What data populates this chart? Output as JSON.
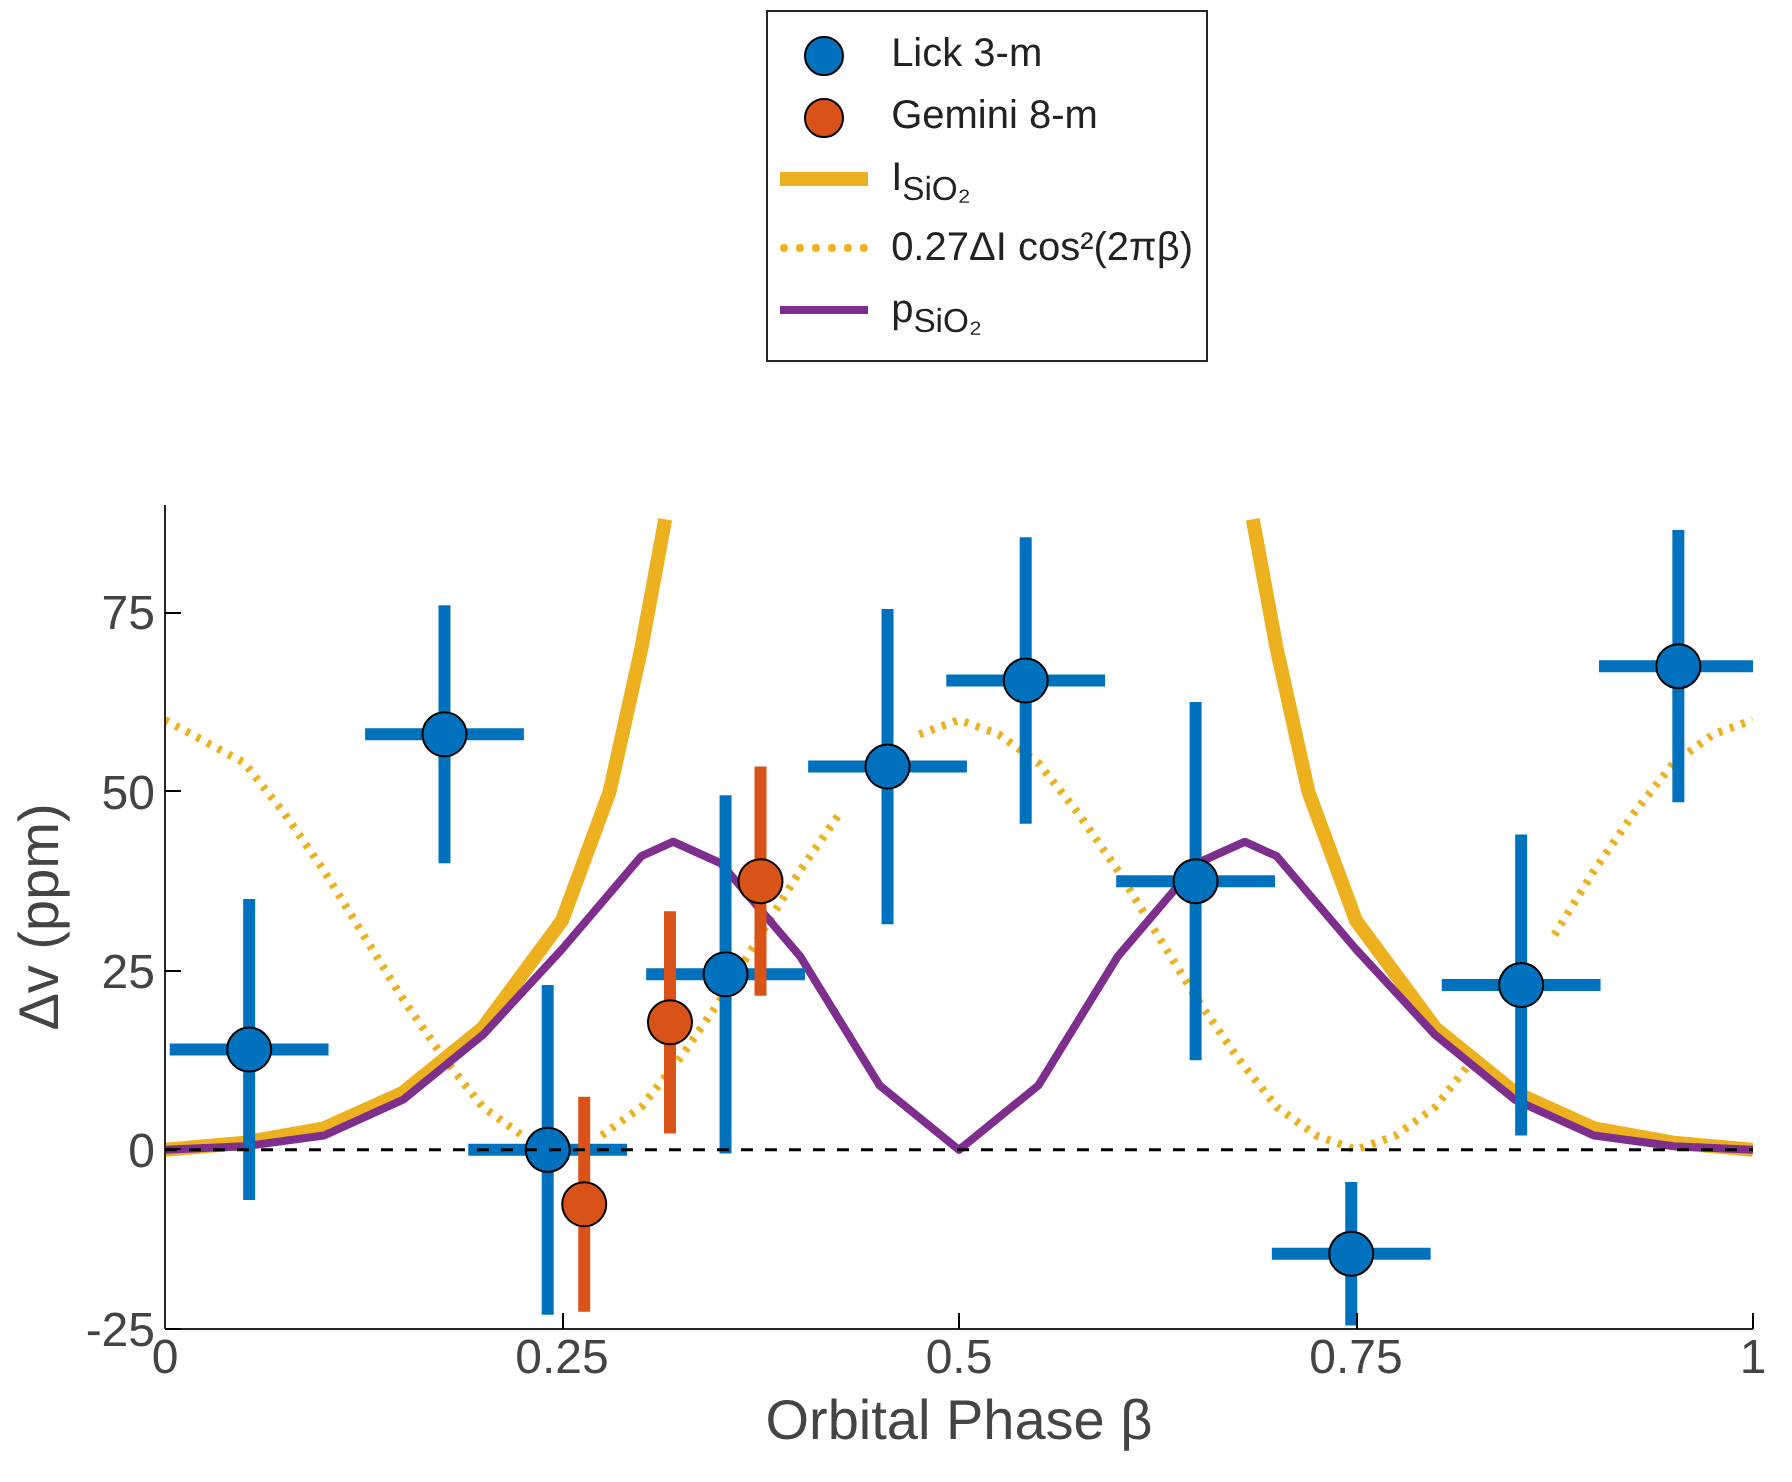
{
  "chart_data": {
    "type": "scatter",
    "xlabel": "Orbital Phase β",
    "ylabel": "Δv (ppm)",
    "xlim": [
      0,
      1
    ],
    "ylim": [
      -25,
      90
    ],
    "xticks": [
      0,
      0.25,
      0.5,
      0.75,
      1
    ],
    "yticks": [
      -25,
      0,
      25,
      50,
      75
    ],
    "grid": false,
    "legend": "top",
    "ref_lines": [
      {
        "axis": "y",
        "value": 0,
        "color": "#000000",
        "line_style": "dashed"
      }
    ],
    "series": [
      {
        "name": "Lick 3-m",
        "marker": "circle",
        "color": "#0072bd",
        "x": [
          0.053,
          0.176,
          0.241,
          0.353,
          0.455,
          0.542,
          0.649,
          0.747,
          0.854,
          0.953
        ],
        "values": [
          14,
          58,
          0,
          24.5,
          53.5,
          65.5,
          37.5,
          -14.5,
          23,
          67.5
        ],
        "errors": [
          21,
          18,
          23,
          25,
          22,
          20,
          25,
          10,
          21,
          19
        ],
        "xerrors": [
          0.05,
          0.05,
          0.05,
          0.05,
          0.05,
          0.05,
          0.05,
          0.05,
          0.05,
          0.05
        ]
      },
      {
        "name": "Gemini 8-m",
        "marker": "circle",
        "color": "#d95319",
        "x": [
          0.264,
          0.318,
          0.375
        ],
        "values": [
          -7.6,
          17.8,
          37.5
        ],
        "errors": [
          15,
          15.5,
          16
        ],
        "xerrors": [
          0.012,
          0.012,
          0.012
        ]
      },
      {
        "name": "I$_{SiO₂}$",
        "type": "line",
        "color": "#edb120",
        "line_style": "solid",
        "x": [
          0,
          0.05,
          0.1,
          0.15,
          0.2,
          0.25,
          0.28,
          0.3,
          0.315,
          0.5,
          0.685,
          0.7,
          0.72,
          0.75,
          0.8,
          0.85,
          0.9,
          0.95,
          1
        ],
        "values": [
          0,
          1,
          3,
          8,
          17,
          32,
          50,
          70,
          88,
          null,
          88,
          70,
          50,
          32,
          17,
          8,
          3,
          1,
          0
        ]
      },
      {
        "name": "0.27ΔI cos²(2πβ)",
        "type": "line",
        "color": "#edb120",
        "line_style": "dotted",
        "x": [
          0,
          0.025,
          0.05,
          0.075,
          0.1,
          0.125,
          0.15,
          0.175,
          0.2,
          0.225,
          0.25,
          0.275,
          0.3,
          0.325,
          0.35,
          0.375,
          0.4,
          0.425,
          0.45,
          0.475,
          0.5,
          0.525,
          0.55,
          0.575,
          0.6,
          0.625,
          0.65,
          0.675,
          0.7,
          0.725,
          0.75,
          0.775,
          0.8,
          0.825,
          0.85,
          0.875,
          0.9,
          0.925,
          0.95,
          0.975,
          1
        ],
        "values": [
          60,
          57,
          54,
          47,
          39,
          30,
          21,
          13,
          6,
          2,
          null,
          2,
          6,
          13,
          21,
          30,
          39,
          47,
          null,
          58,
          60,
          58,
          54,
          47,
          39,
          30,
          21,
          13,
          6,
          2,
          0,
          2,
          6,
          13,
          null,
          30,
          39,
          47,
          54,
          58,
          60
        ]
      },
      {
        "name": "p$_{SiO₂}$",
        "type": "line",
        "color": "#7e2f8e",
        "line_style": "solid",
        "x": [
          0,
          0.05,
          0.1,
          0.15,
          0.2,
          0.25,
          0.3,
          0.32,
          0.35,
          0.4,
          0.45,
          0.5,
          0.55,
          0.6,
          0.65,
          0.68,
          0.7,
          0.75,
          0.8,
          0.85,
          0.9,
          0.95,
          1
        ],
        "values": [
          0,
          0.5,
          2,
          7,
          16,
          28,
          41,
          43,
          40,
          27,
          9,
          0,
          9,
          27,
          40,
          43,
          41,
          28,
          16,
          7,
          2,
          0.5,
          0
        ]
      }
    ]
  }
}
